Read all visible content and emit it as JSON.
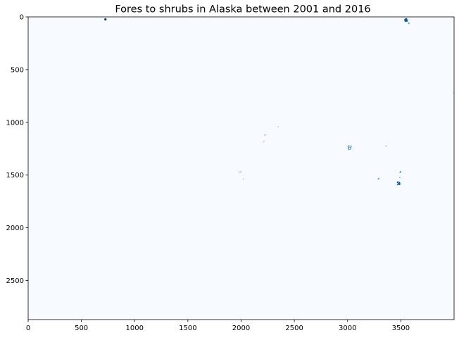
{
  "chart_data": {
    "type": "heatmap",
    "title": "Fores to shrubs in Alaska between 2001 and 2016",
    "xlabel": "",
    "ylabel": "",
    "xlim": [
      0,
      4000
    ],
    "ylim": [
      2870,
      0
    ],
    "x_ticks": [
      0,
      500,
      1000,
      1500,
      2000,
      2500,
      3000,
      3500
    ],
    "y_ticks": [
      0,
      500,
      1000,
      1500,
      2000,
      2500
    ],
    "colormap": "Blues",
    "colors": {
      "background": "#f7fbff",
      "light": "#9ecae1",
      "medium": "#4292c6",
      "dark": "#08519c",
      "darkest": "#08306b"
    },
    "grid": false,
    "legend": "none",
    "clusters": [
      {
        "x": 725,
        "y": 22,
        "spread": 8,
        "count": 22,
        "level": "darkest"
      },
      {
        "x": 3550,
        "y": 30,
        "spread": 14,
        "count": 40,
        "level": "dark"
      },
      {
        "x": 3575,
        "y": 60,
        "spread": 6,
        "count": 6,
        "level": "medium"
      },
      {
        "x": 2230,
        "y": 1120,
        "spread": 14,
        "count": 5,
        "level": "light"
      },
      {
        "x": 2210,
        "y": 1180,
        "spread": 8,
        "count": 3,
        "level": "light"
      },
      {
        "x": 2350,
        "y": 1040,
        "spread": 5,
        "count": 2,
        "level": "light"
      },
      {
        "x": 3020,
        "y": 1240,
        "spread": 20,
        "count": 22,
        "level": "medium"
      },
      {
        "x": 3360,
        "y": 1225,
        "spread": 4,
        "count": 3,
        "level": "medium"
      },
      {
        "x": 1990,
        "y": 1470,
        "spread": 10,
        "count": 5,
        "level": "light"
      },
      {
        "x": 2020,
        "y": 1540,
        "spread": 5,
        "count": 2,
        "level": "light"
      },
      {
        "x": 3290,
        "y": 1530,
        "spread": 7,
        "count": 6,
        "level": "medium"
      },
      {
        "x": 3495,
        "y": 1470,
        "spread": 4,
        "count": 4,
        "level": "dark"
      },
      {
        "x": 3490,
        "y": 1520,
        "spread": 3,
        "count": 3,
        "level": "medium"
      },
      {
        "x": 3480,
        "y": 1578,
        "spread": 16,
        "count": 30,
        "level": "dark"
      },
      {
        "x": 3995,
        "y": 720,
        "spread": 3,
        "count": 2,
        "level": "light"
      }
    ]
  }
}
